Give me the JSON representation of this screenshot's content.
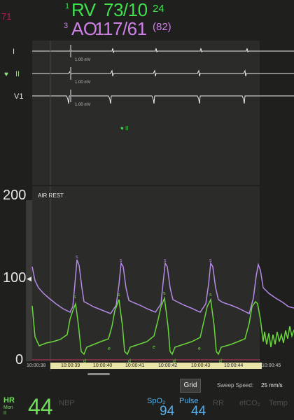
{
  "header": {
    "alarm_number": "71",
    "channels": [
      {
        "number": "1",
        "label": "RV",
        "value": "73/10",
        "extra": "24",
        "color": "#3ee04c"
      },
      {
        "number": "3",
        "label": "AO",
        "value": "117/61",
        "extra": "(82)",
        "color": "#cf7fe8"
      }
    ]
  },
  "ecg": {
    "leads": [
      {
        "name": "I",
        "scale": "1.00 mV"
      },
      {
        "name": "II",
        "scale": "1.00 mV"
      },
      {
        "name": "V1",
        "scale": "1.00 mV"
      }
    ],
    "heart_symbol": "♥",
    "marker_symbol": "♥ II"
  },
  "pressure": {
    "mode_label": "AIR REST",
    "y_ticks": [
      "200",
      "100",
      "0"
    ],
    "y_marker": "◀",
    "time_labels": [
      "10:00:38",
      "10:00:39",
      "10:00:40",
      "10:00:41",
      "10:00:42",
      "10:00:43",
      "10:00:44",
      "10:00:45"
    ],
    "wave_labels": {
      "systolic": "s",
      "end": "d",
      "edge": "e"
    }
  },
  "controls": {
    "grid_button": "Grid",
    "sweep_label": "Sweep Speed:",
    "sweep_value": "25 mm/s"
  },
  "vitals": {
    "hr": {
      "label": "HR",
      "sub1": "Mon",
      "sub2": "II",
      "value": "44"
    },
    "nbp_label": "NBP",
    "spo2": {
      "label": "SpO₂",
      "value": "94"
    },
    "pulse": {
      "label": "Pulse",
      "value": "44"
    },
    "rr_label": "RR",
    "etco2_label": "etCO₂",
    "temp_label": "Temp"
  },
  "colors": {
    "rv": "#3ee04c",
    "ao": "#cf7fe8",
    "pressure_green": "#6ad83a",
    "pressure_purple": "#b58ae6",
    "blue": "#5aaee6"
  }
}
